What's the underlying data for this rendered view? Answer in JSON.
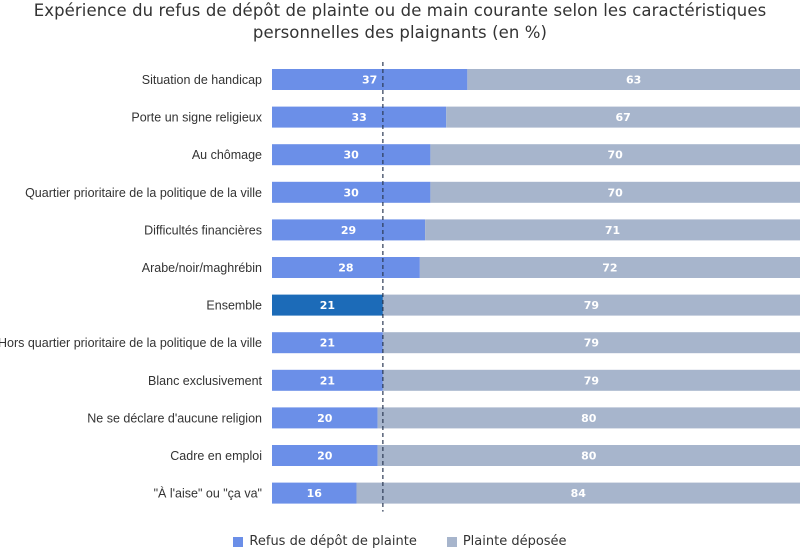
{
  "chart_data": {
    "type": "bar",
    "orientation": "horizontal",
    "stacked": true,
    "title_lines": [
      "Expérience du refus de dépôt de plainte ou de main courante selon les caractéristiques",
      "personnelles des plaignants (en %)"
    ],
    "categories": [
      "Situation de handicap",
      "Porte un signe religieux",
      "Au chômage",
      "Quartier prioritaire de la politique de la ville",
      "Difficultés financières",
      "Arabe/noir/maghrébin",
      "Ensemble",
      "Hors quartier prioritaire de la politique de la ville",
      "Blanc exclusivement",
      "Ne se déclare d'aucune religion",
      "Cadre en emploi",
      "\"À l'aise\" ou \"ça va\""
    ],
    "series": [
      {
        "name": "Refus de dépôt de plainte",
        "color": "#6b8fe8",
        "values": [
          37,
          33,
          30,
          30,
          29,
          28,
          21,
          21,
          21,
          20,
          20,
          16
        ]
      },
      {
        "name": "Plainte déposée",
        "color": "#a7b5cc",
        "values": [
          63,
          67,
          70,
          70,
          71,
          72,
          79,
          79,
          79,
          80,
          80,
          84
        ]
      }
    ],
    "highlight_category": "Ensemble",
    "highlight_color": "#1c6bb8",
    "reference_line": {
      "value": 21,
      "style": "dashed"
    },
    "xlim": [
      0,
      100
    ],
    "legend_position": "bottom"
  }
}
